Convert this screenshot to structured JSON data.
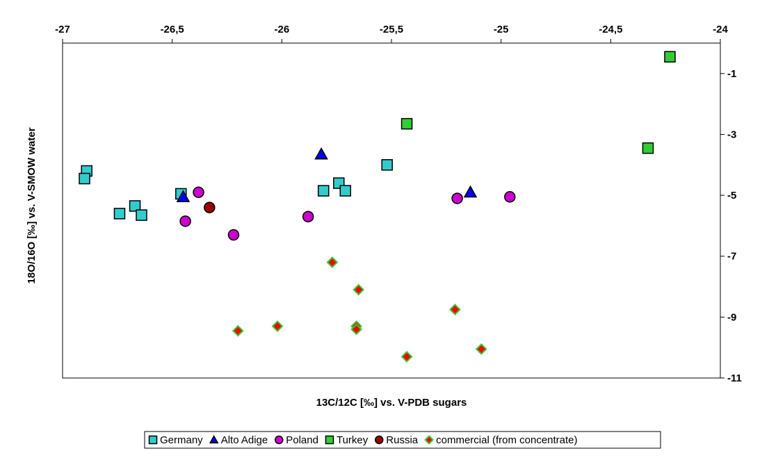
{
  "chart_data": {
    "type": "scatter",
    "xlabel": "13C/12C [‰]  vs. V-PDB sugars",
    "ylabel": "18O/16O [‰]  vs. V-SMOW  water",
    "xlim": [
      -27,
      -24
    ],
    "ylim": [
      -11,
      0
    ],
    "x_ticks": [
      "-27",
      "-26,5",
      "-26",
      "-25,5",
      "-25",
      "-24,5",
      "-24"
    ],
    "x_tick_values": [
      -27,
      -26.5,
      -26,
      -25.5,
      -25,
      -24.5,
      -24
    ],
    "y_ticks": [
      "-1",
      "-3",
      "-5",
      "-7",
      "-9",
      "-11"
    ],
    "y_tick_values": [
      -1,
      -3,
      -5,
      -7,
      -9,
      -11
    ],
    "x_axis_position": "top",
    "y_axis_position": "right",
    "grid": false,
    "legend_position": "bottom",
    "series": [
      {
        "name": "Germany",
        "marker": "square",
        "color": "#33cccc",
        "points": [
          {
            "x": -26.89,
            "y": -4.2
          },
          {
            "x": -26.9,
            "y": -4.45
          },
          {
            "x": -26.74,
            "y": -5.6
          },
          {
            "x": -26.67,
            "y": -5.35
          },
          {
            "x": -26.64,
            "y": -5.65
          },
          {
            "x": -26.46,
            "y": -4.95
          },
          {
            "x": -25.81,
            "y": -4.85
          },
          {
            "x": -25.74,
            "y": -4.6
          },
          {
            "x": -25.71,
            "y": -4.85
          },
          {
            "x": -25.52,
            "y": -4.0
          }
        ]
      },
      {
        "name": "Alto Adige",
        "marker": "triangle",
        "color": "#0000ff",
        "points": [
          {
            "x": -26.45,
            "y": -5.05
          },
          {
            "x": -25.82,
            "y": -3.65
          },
          {
            "x": -25.14,
            "y": -4.9
          }
        ]
      },
      {
        "name": "Poland",
        "marker": "circle",
        "color": "#cc00cc",
        "points": [
          {
            "x": -26.38,
            "y": -4.9
          },
          {
            "x": -26.44,
            "y": -5.85
          },
          {
            "x": -26.22,
            "y": -6.3
          },
          {
            "x": -25.88,
            "y": -5.7
          },
          {
            "x": -25.2,
            "y": -5.1
          },
          {
            "x": -24.96,
            "y": -5.05
          }
        ]
      },
      {
        "name": "Turkey",
        "marker": "square",
        "color": "#33cc33",
        "points": [
          {
            "x": -25.43,
            "y": -2.65
          },
          {
            "x": -24.33,
            "y": -3.45
          },
          {
            "x": -24.23,
            "y": -0.45
          }
        ]
      },
      {
        "name": "Russia",
        "marker": "circle",
        "color": "#990000",
        "points": [
          {
            "x": -26.33,
            "y": -5.4
          }
        ]
      },
      {
        "name": "commercial (from concentrate)",
        "marker": "diamond",
        "color": "#ff0000",
        "stroke": "#33cc33",
        "points": [
          {
            "x": -25.77,
            "y": -7.2
          },
          {
            "x": -25.65,
            "y": -8.1
          },
          {
            "x": -25.21,
            "y": -8.75
          },
          {
            "x": -26.2,
            "y": -9.45
          },
          {
            "x": -26.02,
            "y": -9.3
          },
          {
            "x": -25.66,
            "y": -9.3
          },
          {
            "x": -25.66,
            "y": -9.4
          },
          {
            "x": -25.43,
            "y": -10.3
          },
          {
            "x": -25.09,
            "y": -10.05
          }
        ]
      }
    ]
  }
}
